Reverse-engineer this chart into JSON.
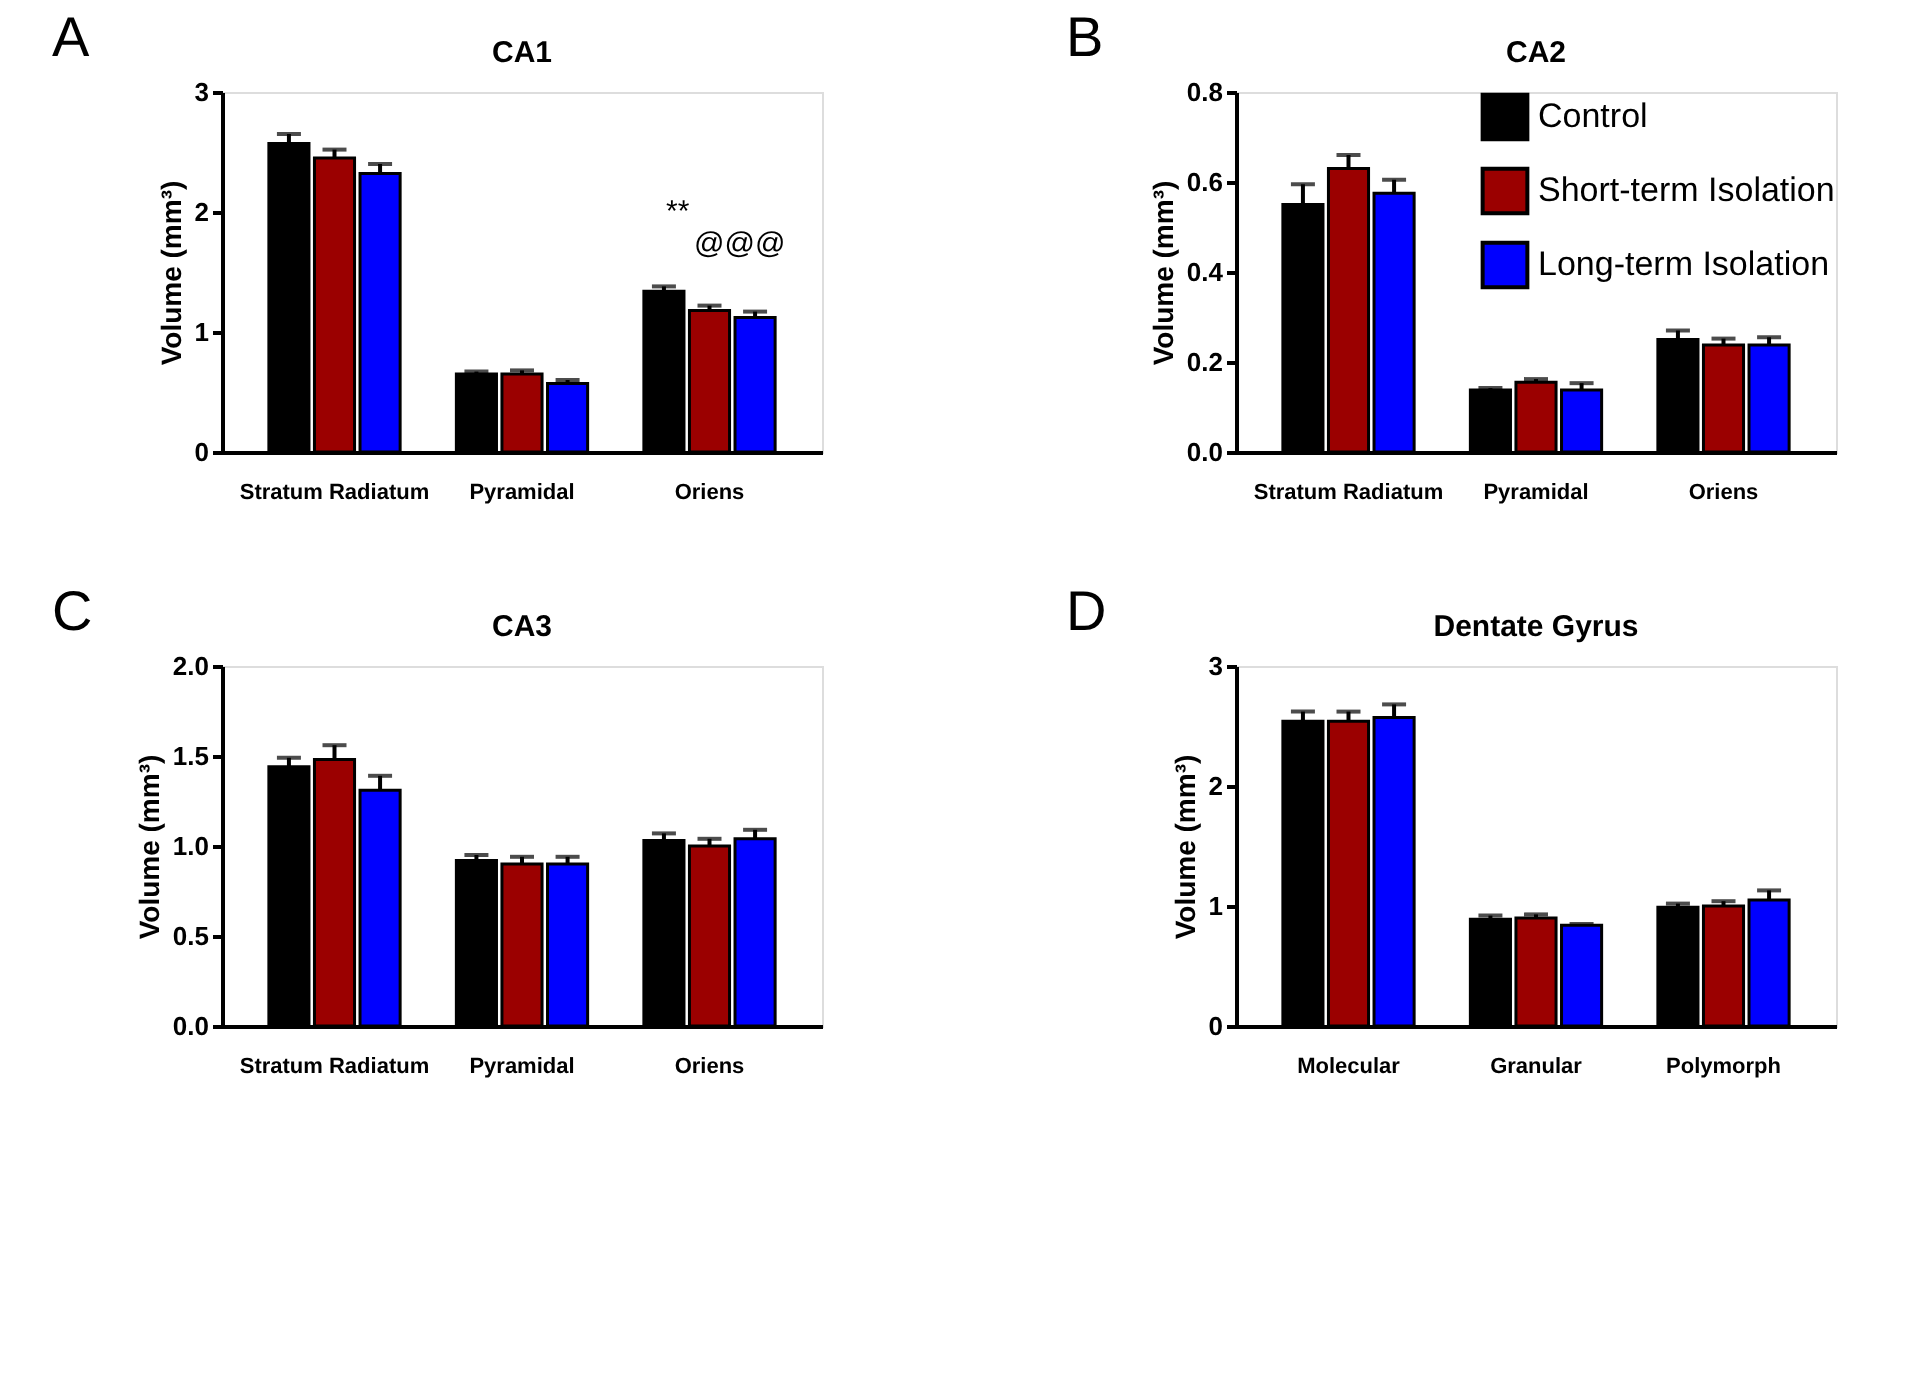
{
  "chart_data": [
    {
      "type": "bar",
      "title": "CA1",
      "ylabel": "Volume (mm³)",
      "categories": [
        "Stratum Radiatum",
        "Pyramidal",
        "Oriens"
      ],
      "ylim": [
        0,
        3
      ],
      "yticks": [
        0,
        1,
        2,
        3
      ],
      "grid": false,
      "legend": false,
      "annotations": [
        "A",
        "**",
        "@@@"
      ],
      "series": [
        {
          "color": "#000000",
          "values": [
            2.57,
            0.65,
            1.34
          ],
          "errors": [
            [
              2.57,
              2.65
            ],
            [
              0.65,
              0.67
            ],
            [
              1.34,
              1.38
            ]
          ]
        },
        {
          "color": "#9b0000",
          "values": [
            2.45,
            0.65,
            1.18
          ],
          "errors": [
            [
              2.45,
              2.52
            ],
            [
              0.65,
              0.68
            ],
            [
              1.18,
              1.22
            ]
          ]
        },
        {
          "color": "#0000ff",
          "values": [
            2.32,
            0.57,
            1.12
          ],
          "errors": [
            [
              2.32,
              2.4
            ],
            [
              0.57,
              0.6
            ],
            [
              1.12,
              1.17
            ]
          ]
        }
      ]
    },
    {
      "type": "bar",
      "title": "CA2",
      "ylabel": "Volume (mm³)",
      "categories": [
        "Stratum Radiatum",
        "Pyramidal",
        "Oriens"
      ],
      "ylim": [
        0,
        0.8
      ],
      "yticks": [
        {
          "value": 0,
          "label": "0.0"
        },
        0.2,
        0.4,
        0.6,
        0.8
      ],
      "grid": false,
      "legend": "top right",
      "annotations": [
        "B"
      ],
      "series": [
        {
          "name": "Control",
          "color": "#000000",
          "values": [
            0.55,
            0.138,
            0.25
          ],
          "errors": [
            [
              0.55,
              0.595
            ],
            [
              0.138,
              0.142
            ],
            [
              0.25,
              0.27
            ]
          ]
        },
        {
          "name": "Short-term Isolation",
          "color": "#9b0000",
          "values": [
            0.63,
            0.155,
            0.238
          ],
          "errors": [
            [
              0.63,
              0.66
            ],
            [
              0.155,
              0.162
            ],
            [
              0.238,
              0.252
            ]
          ]
        },
        {
          "name": "Long-term Isolation",
          "color": "#0000ff",
          "values": [
            0.575,
            0.138,
            0.238
          ],
          "errors": [
            [
              0.575,
              0.605
            ],
            [
              0.138,
              0.153
            ],
            [
              0.238,
              0.255
            ]
          ]
        }
      ]
    },
    {
      "type": "bar",
      "title": "CA3",
      "ylabel": "Volume (mm³)",
      "categories": [
        "Stratum Radiatum",
        "Pyramidal",
        "Oriens"
      ],
      "ylim": [
        0,
        2
      ],
      "yticks": [
        {
          "value": 0,
          "label": "0.0"
        },
        0.5,
        {
          "value": 1,
          "label": "1.0"
        },
        1.5,
        {
          "value": 2,
          "label": "2.0"
        }
      ],
      "grid": false,
      "legend": false,
      "annotations": [
        "C"
      ],
      "series": [
        {
          "color": "#000000",
          "values": [
            1.44,
            0.92,
            1.03
          ],
          "errors": [
            [
              1.44,
              1.49
            ],
            [
              0.92,
              0.95
            ],
            [
              1.03,
              1.07
            ]
          ]
        },
        {
          "color": "#9b0000",
          "values": [
            1.48,
            0.9,
            1.0
          ],
          "errors": [
            [
              1.48,
              1.56
            ],
            [
              0.9,
              0.94
            ],
            [
              1.0,
              1.04
            ]
          ]
        },
        {
          "color": "#0000ff",
          "values": [
            1.31,
            0.9,
            1.04
          ],
          "errors": [
            [
              1.31,
              1.39
            ],
            [
              0.9,
              0.94
            ],
            [
              1.04,
              1.09
            ]
          ]
        }
      ]
    },
    {
      "type": "bar",
      "title": "Dentate Gyrus",
      "ylabel": "Volume (mm³)",
      "categories": [
        "Molecular",
        "Granular",
        "Polymorph"
      ],
      "ylim": [
        0,
        3
      ],
      "yticks": [
        0,
        1,
        2,
        3
      ],
      "grid": false,
      "legend": false,
      "annotations": [
        "D"
      ],
      "series": [
        {
          "color": "#000000",
          "values": [
            2.54,
            0.89,
            0.99
          ],
          "errors": [
            [
              2.54,
              2.62
            ],
            [
              0.89,
              0.92
            ],
            [
              0.99,
              1.02
            ]
          ]
        },
        {
          "color": "#9b0000",
          "values": [
            2.54,
            0.9,
            1.0
          ],
          "errors": [
            [
              2.54,
              2.62
            ],
            [
              0.9,
              0.93
            ],
            [
              1.0,
              1.04
            ]
          ]
        },
        {
          "color": "#0000ff",
          "values": [
            2.57,
            0.84,
            1.05
          ],
          "errors": [
            [
              2.57,
              2.68
            ],
            [
              0.84,
              0.85
            ],
            [
              1.05,
              1.13
            ]
          ]
        }
      ]
    }
  ]
}
